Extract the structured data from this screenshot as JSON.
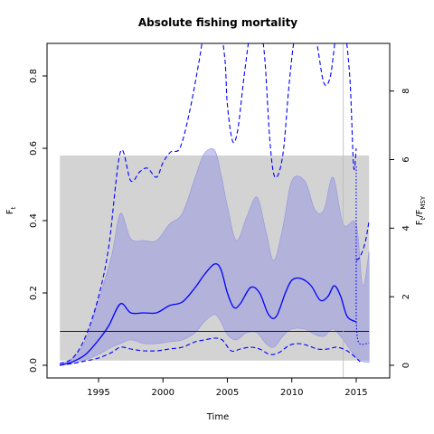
{
  "chart_data": {
    "type": "line",
    "title": "Absolute fishing mortality",
    "xlabel": "Time",
    "ylabel_left": {
      "main": "F",
      "sub": "t"
    },
    "ylabel_right": {
      "main": "F",
      "sub1": "t",
      "mid": "/F",
      "sub2": "MSY"
    },
    "xlim": [
      1991.0,
      2017.6
    ],
    "ylim": [
      -0.035,
      0.89
    ],
    "right_ratio": 10.55,
    "x_ticks": [
      1995,
      2000,
      2005,
      2010,
      2015
    ],
    "y_ticks": [
      0.0,
      0.2,
      0.4,
      0.6,
      0.8
    ],
    "y_tick_labels": [
      "0.0",
      "0.2",
      "0.4",
      "0.6",
      "0.8"
    ],
    "right_ticks": [
      0,
      2,
      4,
      6,
      8
    ],
    "right_tick_labels": [
      "0",
      "2",
      "4",
      "6",
      "8"
    ],
    "x_tick_labels": [
      "1995",
      "2000",
      "2005",
      "2010",
      "2015"
    ],
    "msy_band": {
      "x0": 1992,
      "x1": 2016,
      "ymin": 0.013,
      "ymax": 0.58
    },
    "fmsy_line": 0.094,
    "vertical_line_x": 2014,
    "ci_band": {
      "x": [
        1992,
        1993,
        1994,
        1995,
        1996,
        1996.7,
        1997.5,
        1998.5,
        1999.5,
        2000.5,
        2001.5,
        2002.5,
        2003.2,
        2004,
        2004.5,
        2005,
        2005.7,
        2006.5,
        2007.3,
        2008,
        2008.6,
        2009.3,
        2010,
        2011,
        2011.8,
        2012.5,
        2013.2,
        2014,
        2015,
        2015.5,
        2016
      ],
      "upper": [
        0.005,
        0.02,
        0.07,
        0.18,
        0.3,
        0.42,
        0.35,
        0.345,
        0.345,
        0.39,
        0.42,
        0.52,
        0.585,
        0.595,
        0.53,
        0.44,
        0.345,
        0.41,
        0.465,
        0.37,
        0.29,
        0.38,
        0.51,
        0.51,
        0.43,
        0.43,
        0.52,
        0.39,
        0.39,
        0.22,
        0.315
      ],
      "lower": [
        0.0,
        0.005,
        0.015,
        0.03,
        0.05,
        0.06,
        0.07,
        0.06,
        0.06,
        0.065,
        0.07,
        0.09,
        0.12,
        0.14,
        0.12,
        0.085,
        0.07,
        0.09,
        0.09,
        0.06,
        0.05,
        0.08,
        0.1,
        0.1,
        0.085,
        0.08,
        0.1,
        0.07,
        0.02,
        0.01,
        0.008
      ]
    },
    "series": [
      {
        "role": "estimate",
        "color": "#0000ff",
        "style": "solid",
        "x": [
          1992,
          1993,
          1994,
          1995,
          1995.8,
          1996.7,
          1997.5,
          1998.5,
          1999.5,
          2000.5,
          2001.5,
          2002.5,
          2003.2,
          2004,
          2004.5,
          2005,
          2005.5,
          2006,
          2006.8,
          2007.5,
          2008.2,
          2008.8,
          2009.5,
          2010,
          2010.7,
          2011.5,
          2012.2,
          2012.8,
          2013.3,
          2013.8,
          2014.3,
          2015
        ],
        "y": [
          0.0,
          0.01,
          0.03,
          0.07,
          0.11,
          0.17,
          0.145,
          0.145,
          0.145,
          0.165,
          0.175,
          0.215,
          0.25,
          0.28,
          0.265,
          0.2,
          0.16,
          0.17,
          0.215,
          0.2,
          0.14,
          0.135,
          0.2,
          0.235,
          0.24,
          0.22,
          0.18,
          0.19,
          0.22,
          0.19,
          0.135,
          0.12
        ]
      },
      {
        "role": "upper-ci",
        "color": "#0000ff",
        "style": "dashed",
        "x": [
          1992,
          1993,
          1994,
          1995,
          1995.8,
          1996.7,
          1997.5,
          1998.2,
          1998.8,
          1999.5,
          2000,
          2000.6,
          2001.3,
          2002,
          2002.8,
          2003.2,
          2003.5,
          2004.3,
          2004.8,
          2005,
          2005.4,
          2005.8,
          2006.3,
          2006.8,
          2007.2,
          2007.5,
          2007.9,
          2008.3,
          2008.7,
          2009.3,
          2009.8,
          2010.3,
          2011,
          2011.6,
          2012,
          2012.5,
          2013,
          2013.5,
          2014,
          2014.5,
          2014.8,
          2015
        ],
        "y": [
          0.005,
          0.02,
          0.08,
          0.19,
          0.33,
          0.59,
          0.51,
          0.535,
          0.545,
          0.52,
          0.56,
          0.59,
          0.6,
          0.69,
          0.84,
          0.93,
          0.95,
          0.95,
          0.85,
          0.72,
          0.62,
          0.65,
          0.8,
          0.93,
          0.97,
          0.95,
          0.85,
          0.62,
          0.52,
          0.58,
          0.78,
          0.92,
          0.95,
          0.95,
          0.88,
          0.78,
          0.8,
          0.93,
          0.95,
          0.8,
          0.55,
          0.6
        ]
      },
      {
        "role": "lower-ci",
        "color": "#0000ff",
        "style": "dashed",
        "x": [
          1992,
          1993,
          1994,
          1995,
          1996,
          1996.7,
          1997.5,
          1998.5,
          1999.5,
          2000.5,
          2001.5,
          2002.5,
          2003.2,
          2004,
          2004.6,
          2005.3,
          2006,
          2006.8,
          2007.5,
          2008.3,
          2009,
          2009.8,
          2010.5,
          2011.2,
          2012,
          2012.8,
          2013.5,
          2014.3,
          2015,
          2015.3
        ],
        "y": [
          0.0,
          0.005,
          0.012,
          0.02,
          0.035,
          0.05,
          0.045,
          0.04,
          0.04,
          0.045,
          0.05,
          0.065,
          0.07,
          0.075,
          0.07,
          0.04,
          0.045,
          0.05,
          0.045,
          0.03,
          0.035,
          0.055,
          0.06,
          0.055,
          0.045,
          0.045,
          0.05,
          0.04,
          0.02,
          0.01
        ]
      },
      {
        "role": "forecast-upper",
        "color": "#0000ff",
        "style": "dashed",
        "x": [
          2015,
          2015.3,
          2015.7,
          2016
        ],
        "y": [
          0.29,
          0.3,
          0.34,
          0.4
        ]
      },
      {
        "role": "forecast-point",
        "color": "#0000ff",
        "style": "dotted",
        "x": [
          2015,
          2015.2,
          2016
        ],
        "y": [
          0.12,
          0.062,
          0.062
        ]
      },
      {
        "role": "forecast-drop",
        "color": "#0000ff",
        "style": "dotted",
        "x": [
          2015,
          2015,
          2015
        ],
        "y": [
          0.55,
          0.3,
          0.12
        ]
      }
    ]
  }
}
